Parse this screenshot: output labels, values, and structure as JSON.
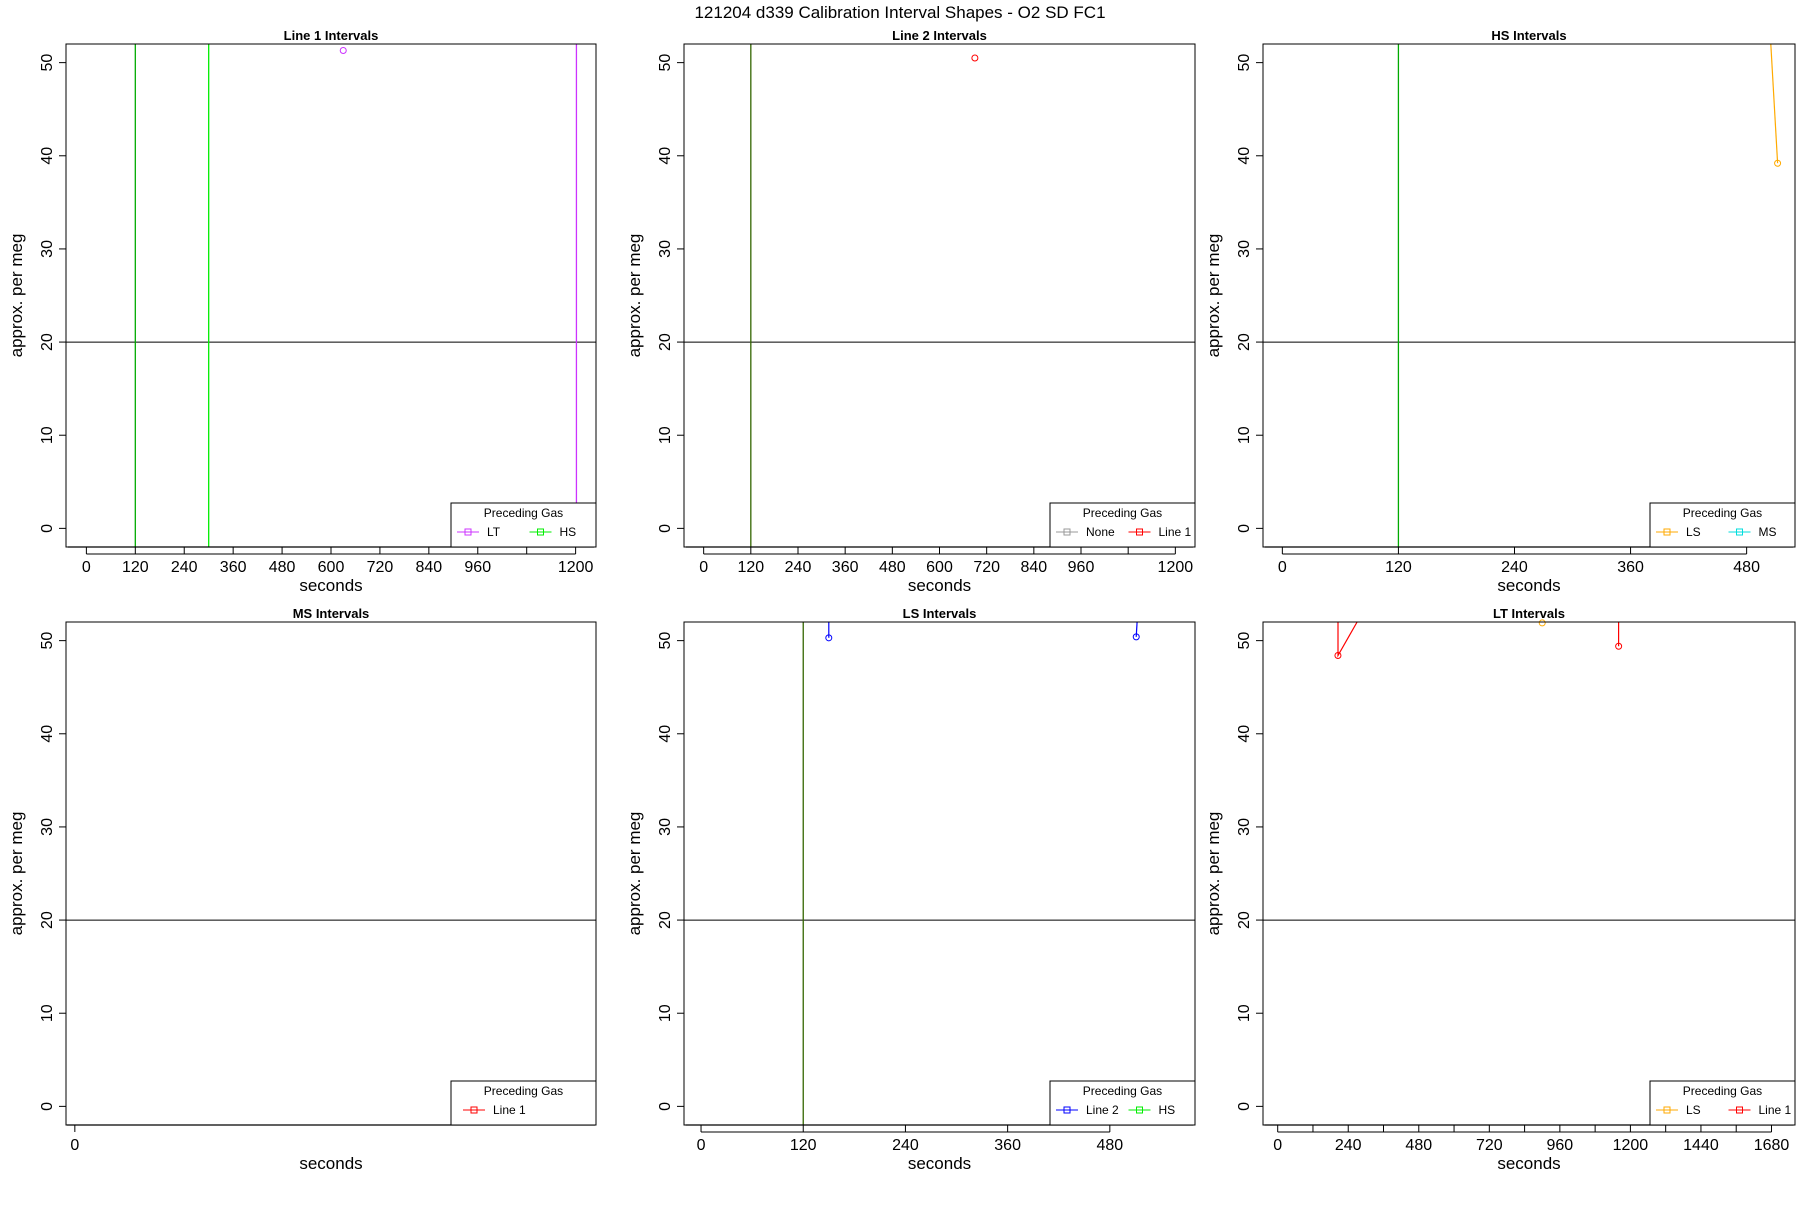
{
  "figure_title": "121204   d339   Calibration Interval Shapes - O2 SD FC1",
  "chart_data": [
    {
      "type": "line",
      "title": "Line 1 Intervals",
      "xlabel": "seconds",
      "ylabel": "approx. per meg",
      "xlim": [
        -50,
        1250
      ],
      "ylim": [
        -2,
        52
      ],
      "x_ticks": [
        0,
        120,
        240,
        360,
        480,
        600,
        720,
        840,
        960,
        1080,
        1200
      ],
      "x_tick_labels": [
        "0",
        "120",
        "240",
        "360",
        "480",
        "600",
        "720",
        "840",
        "960",
        "",
        "1200"
      ],
      "y_ticks": [
        0,
        10,
        20,
        30,
        40,
        50
      ],
      "hline": 20,
      "grid": false,
      "legend": {
        "title": "Preceding Gas",
        "position": "bottom-right",
        "entries": [
          {
            "label": "LT",
            "color": "#cc33ff"
          },
          {
            "label": "HS",
            "color": "#00ee00"
          }
        ]
      },
      "vlines": [
        {
          "x": 120,
          "color": "#00aa00"
        },
        {
          "x": 300,
          "color": "#00ee00"
        },
        {
          "x": 1202,
          "color": "#cc33ff"
        }
      ],
      "series": [
        {
          "color": "#cc33ff",
          "points": [
            {
              "x": 630,
              "y": 51.3
            }
          ]
        },
        {
          "color": "#000000",
          "points": [
            {
              "x": -45,
              "y": -2
            },
            {
              "x": 1245,
              "y": -2
            }
          ]
        }
      ]
    },
    {
      "type": "line",
      "title": "Line 2 Intervals",
      "xlabel": "seconds",
      "ylabel": "approx. per meg",
      "xlim": [
        -50,
        1250
      ],
      "ylim": [
        -2,
        52
      ],
      "x_ticks": [
        0,
        120,
        240,
        360,
        480,
        600,
        720,
        840,
        960,
        1080,
        1200
      ],
      "x_tick_labels": [
        "0",
        "120",
        "240",
        "360",
        "480",
        "600",
        "720",
        "840",
        "960",
        "",
        "1200"
      ],
      "y_ticks": [
        0,
        10,
        20,
        30,
        40,
        50
      ],
      "hline": 20,
      "grid": false,
      "legend": {
        "title": "Preceding Gas",
        "position": "bottom-right",
        "entries": [
          {
            "label": "None",
            "color": "#999999"
          },
          {
            "label": "Line 1",
            "color": "#ff0000"
          }
        ]
      },
      "vlines": [
        {
          "x": 120,
          "color": "#336600"
        }
      ],
      "series": [
        {
          "color": "#ff0000",
          "points": [
            {
              "x": 690,
              "y": 50.5
            }
          ]
        },
        {
          "color": "#000000",
          "points": [
            {
              "x": -45,
              "y": -2
            },
            {
              "x": 1245,
              "y": -2
            }
          ]
        }
      ]
    },
    {
      "type": "line",
      "title": "HS Intervals",
      "xlabel": "seconds",
      "ylabel": "approx. per meg",
      "xlim": [
        -20,
        530
      ],
      "ylim": [
        -2,
        52
      ],
      "x_ticks": [
        0,
        120,
        240,
        360,
        480
      ],
      "x_tick_labels": [
        "0",
        "120",
        "240",
        "360",
        "480"
      ],
      "y_ticks": [
        0,
        10,
        20,
        30,
        40,
        50
      ],
      "hline": 20,
      "grid": false,
      "legend": {
        "title": "Preceding Gas",
        "position": "bottom-right",
        "entries": [
          {
            "label": "LS",
            "color": "#ffaa00"
          },
          {
            "label": "MS",
            "color": "#00dddd"
          }
        ]
      },
      "vlines": [
        {
          "x": 120,
          "color": "#00aa00"
        }
      ],
      "series": [
        {
          "color": "#ffaa00",
          "points": [
            {
              "x": 505,
              "y": 52
            },
            {
              "x": 512,
              "y": 39.2
            }
          ]
        },
        {
          "color": "#000000",
          "points": [
            {
              "x": -18,
              "y": -2
            },
            {
              "x": 528,
              "y": -2
            }
          ]
        }
      ]
    },
    {
      "type": "line",
      "title": "MS Intervals",
      "xlabel": "seconds",
      "ylabel": "approx. per meg",
      "xlim": [
        -20,
        1180
      ],
      "ylim": [
        -2,
        52
      ],
      "x_ticks": [
        0
      ],
      "x_tick_labels": [
        "0"
      ],
      "y_ticks": [
        0,
        10,
        20,
        30,
        40,
        50
      ],
      "hline": 20,
      "grid": false,
      "legend": {
        "title": "Preceding Gas",
        "position": "bottom-right",
        "entries": [
          {
            "label": "Line 1",
            "color": "#ff0000"
          }
        ]
      },
      "vlines": [],
      "series": [
        {
          "color": "#000000",
          "points": [
            {
              "x": -18,
              "y": -2
            },
            {
              "x": 1178,
              "y": -2
            }
          ]
        }
      ]
    },
    {
      "type": "line",
      "title": "LS Intervals",
      "xlabel": "seconds",
      "ylabel": "approx. per meg",
      "xlim": [
        -20,
        580
      ],
      "ylim": [
        -2,
        52
      ],
      "x_ticks": [
        0,
        120,
        240,
        360,
        480
      ],
      "x_tick_labels": [
        "0",
        "120",
        "240",
        "360",
        "480"
      ],
      "y_ticks": [
        0,
        10,
        20,
        30,
        40,
        50
      ],
      "hline": 20,
      "grid": false,
      "legend": {
        "title": "Preceding Gas",
        "position": "bottom-right",
        "entries": [
          {
            "label": "Line 2",
            "color": "#0000ff"
          },
          {
            "label": "HS",
            "color": "#00ee00"
          }
        ]
      },
      "vlines": [
        {
          "x": 120,
          "color": "#336600"
        }
      ],
      "series": [
        {
          "color": "#0000ff",
          "points": [
            {
              "x": 150,
              "y": 52
            },
            {
              "x": 150,
              "y": 50.3
            }
          ]
        },
        {
          "color": "#0000ff",
          "points": [
            {
              "x": 512,
              "y": 52
            },
            {
              "x": 511,
              "y": 50.4
            }
          ]
        },
        {
          "color": "#000000",
          "points": [
            {
              "x": -18,
              "y": -2
            },
            {
              "x": 578,
              "y": -2
            }
          ]
        }
      ]
    },
    {
      "type": "line",
      "title": "LT Intervals",
      "xlabel": "seconds",
      "ylabel": "approx. per meg",
      "xlim": [
        -50,
        1760
      ],
      "ylim": [
        -2,
        52
      ],
      "x_ticks": [
        0,
        120,
        240,
        360,
        480,
        600,
        720,
        840,
        960,
        1080,
        1200,
        1320,
        1440,
        1560,
        1680
      ],
      "x_tick_labels": [
        "0",
        "",
        "240",
        "",
        "480",
        "",
        "720",
        "",
        "960",
        "",
        "1200",
        "",
        "1440",
        "",
        "1680"
      ],
      "y_ticks": [
        0,
        10,
        20,
        30,
        40,
        50
      ],
      "hline": 20,
      "grid": false,
      "legend": {
        "title": "Preceding Gas",
        "position": "bottom-right",
        "entries": [
          {
            "label": "LS",
            "color": "#ffaa00"
          },
          {
            "label": "Line 1",
            "color": "#ff0000"
          }
        ]
      },
      "vlines": [],
      "series": [
        {
          "color": "#ff0000",
          "points": [
            {
              "x": 205,
              "y": 52
            },
            {
              "x": 205,
              "y": 48.4
            },
            {
              "x": 270,
              "y": 52
            }
          ]
        },
        {
          "color": "#ff0000",
          "points": [
            {
              "x": 1160,
              "y": 52
            },
            {
              "x": 1160,
              "y": 49.4
            }
          ]
        },
        {
          "color": "#ffaa00",
          "points": [
            {
              "x": 900,
              "y": 51.9
            }
          ]
        },
        {
          "color": "#000000",
          "points": [
            {
              "x": -45,
              "y": -2
            },
            {
              "x": 1755,
              "y": -2
            }
          ]
        }
      ]
    }
  ]
}
